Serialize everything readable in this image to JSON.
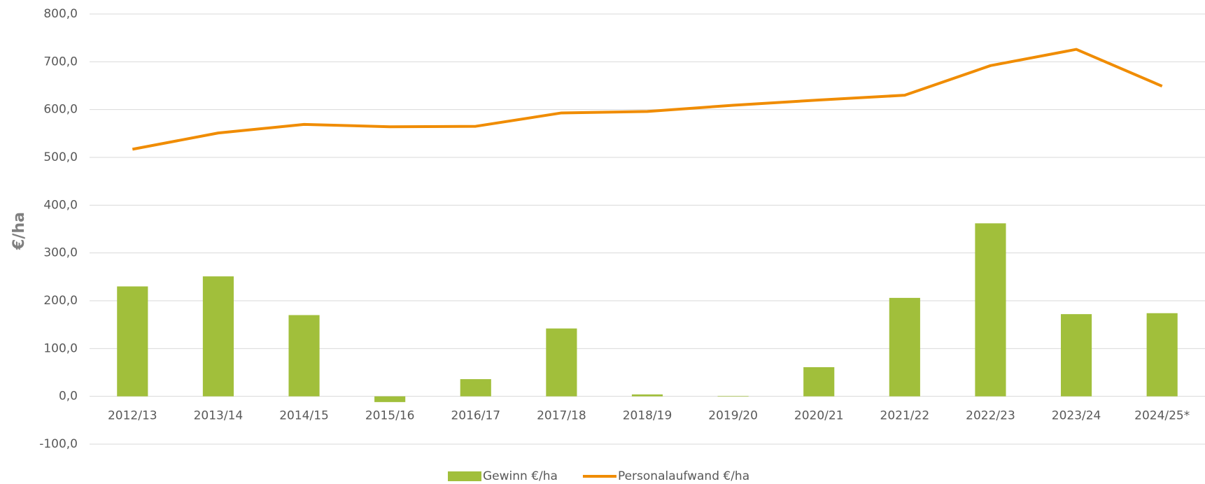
{
  "chart_data": {
    "type": "bar_line",
    "y_label": "€/ha",
    "categories": [
      "2012/13",
      "2013/14",
      "2014/15",
      "2015/16",
      "2016/17",
      "2017/18",
      "2018/19",
      "2019/20",
      "2020/21",
      "2021/22",
      "2022/23",
      "2023/24",
      "2024/25*"
    ],
    "series": [
      {
        "name": "Gewinn €/ha",
        "type": "bar",
        "color": "#a1bf3b",
        "values": [
          230,
          251,
          170,
          -12,
          36,
          142,
          4,
          1,
          61,
          206,
          362,
          172,
          174
        ]
      },
      {
        "name": "Personalaufwand €/ha",
        "type": "line",
        "color": "#f08c00",
        "values": [
          517,
          551,
          569,
          564,
          565,
          593,
          596,
          609,
          620,
          630,
          692,
          726,
          649
        ]
      }
    ],
    "ylim": [
      -100,
      800
    ],
    "yticks": [
      {
        "value": -100,
        "label": "-100,0"
      },
      {
        "value": 0,
        "label": "0,0"
      },
      {
        "value": 100,
        "label": "100,0"
      },
      {
        "value": 200,
        "label": "200,0"
      },
      {
        "value": 300,
        "label": "300,0"
      },
      {
        "value": 400,
        "label": "400,0"
      },
      {
        "value": 500,
        "label": "500,0"
      },
      {
        "value": 600,
        "label": "600,0"
      },
      {
        "value": 700,
        "label": "700,0"
      },
      {
        "value": 800,
        "label": "800,0"
      }
    ],
    "grid": true
  }
}
